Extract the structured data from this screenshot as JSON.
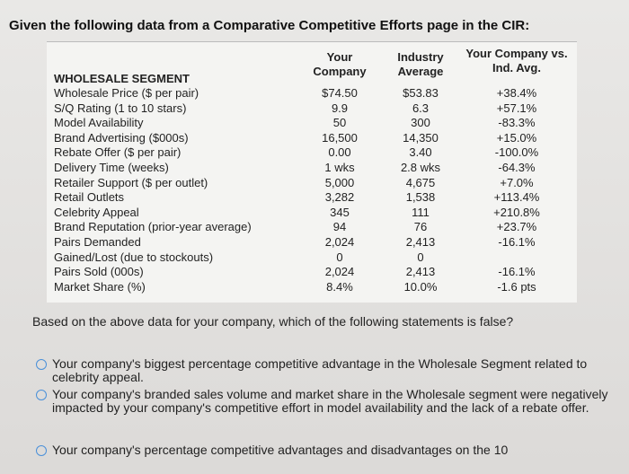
{
  "header": {
    "title": "Given the following data from a Comparative Competitive Efforts page in the CIR:"
  },
  "table": {
    "columns": [
      "WHOLESALE SEGMENT",
      "Your Company",
      "Industry Average",
      "Your Company vs. Ind. Avg."
    ],
    "rows": [
      [
        "Wholesale Price ($ per pair)",
        "$74.50",
        "$53.83",
        "+38.4%"
      ],
      [
        "S/Q Rating (1 to 10 stars)",
        "9.9",
        "6.3",
        "+57.1%"
      ],
      [
        "Model Availability",
        "50",
        "300",
        "-83.3%"
      ],
      [
        "Brand Advertising ($000s)",
        "16,500",
        "14,350",
        "+15.0%"
      ],
      [
        "Rebate Offer ($ per pair)",
        "0.00",
        "3.40",
        "-100.0%"
      ],
      [
        "Delivery Time (weeks)",
        "1 wks",
        "2.8 wks",
        "-64.3%"
      ],
      [
        "Retailer Support ($ per outlet)",
        "5,000",
        "4,675",
        "+7.0%"
      ],
      [
        "Retail Outlets",
        "3,282",
        "1,538",
        "+113.4%"
      ],
      [
        "Celebrity Appeal",
        "345",
        "111",
        "+210.8%"
      ],
      [
        "Brand Reputation (prior-year average)",
        "94",
        "76",
        "+23.7%"
      ],
      [
        "Pairs Demanded",
        "2,024",
        "2,413",
        "-16.1%"
      ],
      [
        "Gained/Lost (due to stockouts)",
        "0",
        "0"
      ],
      [
        "Pairs Sold (000s)",
        "2,024",
        "2,413",
        "-16.1%"
      ],
      [
        "Market Share (%)",
        "8.4%",
        "10.0%",
        "-1.6 pts"
      ]
    ]
  },
  "question": {
    "text": "Based on the above data for your company, which of the following statements is false?",
    "options": [
      "Your company's biggest percentage competitive advantage in the Wholesale Segment related to celebrity appeal.",
      "Your company's branded sales volume and market share in the Wholesale segment were negatively impacted by your company's competitive effort in model availability and the lack of a rebate offer.",
      "Your company's percentage competitive advantages and disadvantages on the 10"
    ]
  }
}
